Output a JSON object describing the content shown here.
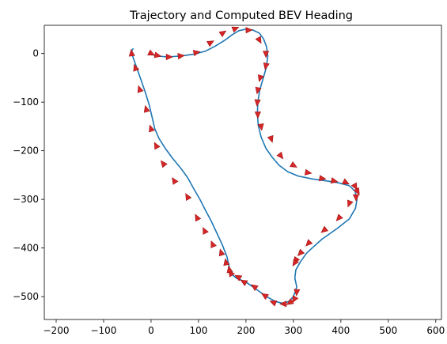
{
  "chart_data": {
    "type": "line",
    "title": "Trajectory and Computed BEV Heading",
    "xlabel": "",
    "ylabel": "",
    "xlim": [
      -225,
      612
    ],
    "ylim": [
      -547,
      58
    ],
    "xticks": [
      -200,
      -100,
      0,
      100,
      200,
      300,
      400,
      500,
      600
    ],
    "yticks": [
      0,
      -100,
      -200,
      -300,
      -400,
      -500
    ],
    "xtick_labels": [
      "−200",
      "−100",
      "0",
      "100",
      "200",
      "300",
      "400",
      "500",
      "600"
    ],
    "ytick_labels": [
      "0",
      "−100",
      "−200",
      "−300",
      "−400",
      "−500"
    ],
    "grid": false,
    "colors": {
      "path": "#1f77b4",
      "arrow": "#d62728",
      "arrow_edge": "#a01010"
    },
    "series": [
      {
        "kind": "path",
        "x": [
          0,
          10,
          35,
          65,
          92,
          115,
          135,
          155,
          170,
          185,
          200,
          215,
          228,
          237,
          243,
          246,
          243,
          236,
          229,
          225,
          224,
          226,
          232,
          242,
          255,
          270,
          288,
          310,
          340,
          370,
          395,
          418,
          430,
          434,
          431,
          418,
          392,
          360,
          328,
          315,
          305,
          303,
          307,
          300,
          290,
          278,
          262,
          243,
          222,
          200,
          180,
          167,
          165,
          160,
          150,
          138,
          127,
          115,
          103,
          90,
          77,
          62,
          45,
          30,
          17,
          8,
          2,
          -4,
          -12,
          -21,
          -30,
          -38,
          -41,
          -40,
          -37
        ],
        "y": [
          0,
          -5,
          -7,
          -5,
          -1,
          5,
          15,
          27,
          38,
          47,
          50,
          48,
          42,
          30,
          15,
          -5,
          -28,
          -52,
          -75,
          -100,
          -125,
          -148,
          -172,
          -195,
          -213,
          -230,
          -243,
          -252,
          -258,
          -262,
          -266,
          -272,
          -283,
          -300,
          -318,
          -340,
          -360,
          -382,
          -410,
          -428,
          -445,
          -462,
          -480,
          -500,
          -510,
          -514,
          -510,
          -500,
          -485,
          -470,
          -462,
          -452,
          -440,
          -418,
          -393,
          -368,
          -345,
          -323,
          -300,
          -278,
          -255,
          -235,
          -215,
          -195,
          -175,
          -155,
          -130,
          -105,
          -80,
          -55,
          -30,
          -8,
          2,
          8,
          10
        ]
      },
      {
        "kind": "heading_arrows",
        "x": [
          0,
          13,
          37,
          62,
          95,
          125,
          151,
          177,
          205,
          228,
          242,
          242,
          230,
          225,
          224,
          225,
          232,
          253,
          273,
          300,
          330,
          360,
          385,
          410,
          430,
          435,
          432,
          418,
          396,
          365,
          332,
          315,
          305,
          303,
          307,
          302,
          293,
          280,
          258,
          240,
          218,
          196,
          184,
          168,
          165,
          158,
          148,
          130,
          113,
          97,
          77,
          49,
          26,
          11,
          0,
          -10,
          -24,
          -33,
          -41
        ],
        "y": [
          0,
          -4,
          -7,
          -5,
          2,
          22,
          42,
          51,
          48,
          28,
          0,
          -25,
          -50,
          -75,
          -100,
          -125,
          -150,
          -175,
          -210,
          -230,
          -245,
          -257,
          -262,
          -265,
          -273,
          -283,
          -295,
          -308,
          -338,
          -363,
          -390,
          -410,
          -425,
          -430,
          -490,
          -505,
          -512,
          -515,
          -512,
          -498,
          -480,
          -470,
          -460,
          -452,
          -445,
          -430,
          -410,
          -393,
          -365,
          -338,
          -295,
          -262,
          -227,
          -190,
          -155,
          -115,
          -74,
          -30,
          0
        ]
      }
    ]
  }
}
